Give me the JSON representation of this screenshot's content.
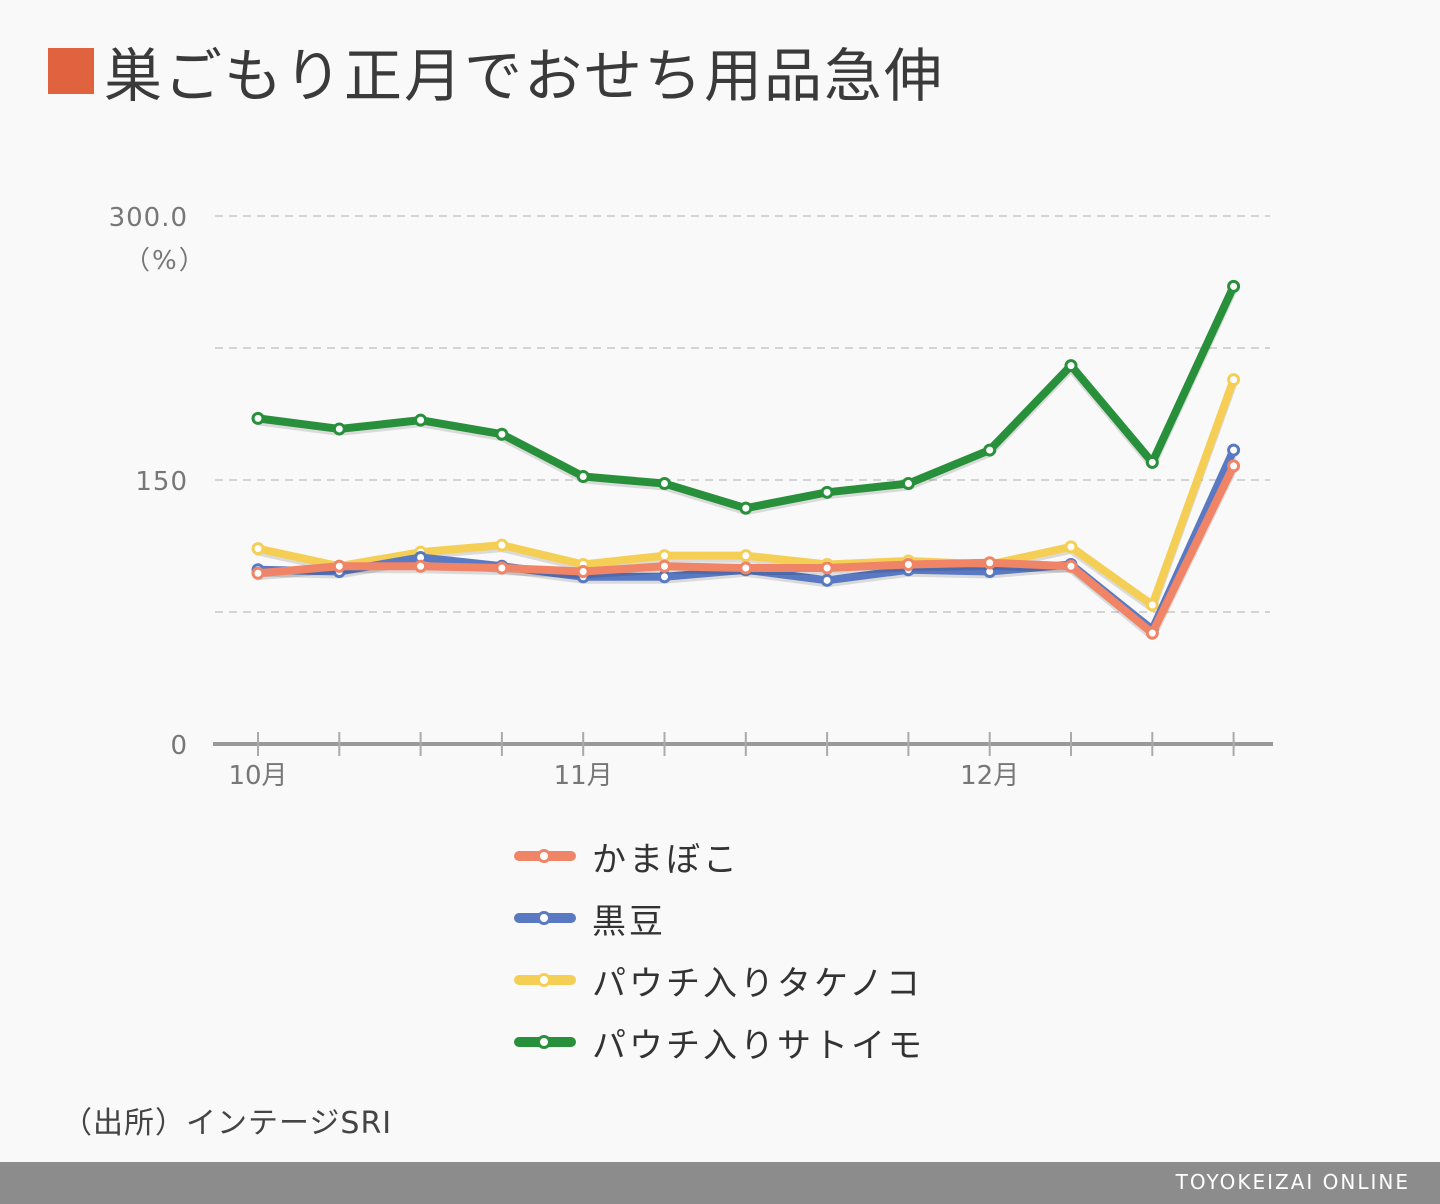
{
  "title": "巣ごもり正月でおせち用品急伸",
  "accent_color": "#e0623e",
  "source": "（出所）インテージSRI",
  "footer_brand": "TOYOKEIZAI ONLINE",
  "chart_data": {
    "type": "line",
    "ylabel": "（%）",
    "ylim": [
      0,
      300
    ],
    "ytick_labels": [
      {
        "value": 300,
        "label": "300.0"
      },
      {
        "value": 150,
        "label": "150"
      },
      {
        "value": 0,
        "label": "0"
      }
    ],
    "gridlines": [
      75,
      150,
      225,
      300
    ],
    "x_points": 13,
    "x_labels": [
      {
        "index": 0,
        "label": "10月"
      },
      {
        "index": 4,
        "label": "11月"
      },
      {
        "index": 9,
        "label": "12月"
      }
    ],
    "grid": true,
    "legend_position": "bottom",
    "series": [
      {
        "name": "パウチ入りサトイモ",
        "color": "#28903b",
        "values": [
          185,
          179,
          184,
          176,
          152,
          148,
          134,
          143,
          148,
          167,
          215,
          160,
          260
        ]
      },
      {
        "name": "パウチ入りタケノコ",
        "color": "#f5cf55",
        "values": [
          111,
          101,
          109,
          113,
          102,
          107,
          107,
          102,
          104,
          102,
          112,
          79,
          207
        ]
      },
      {
        "name": "黒豆",
        "color": "#5a79c3",
        "values": [
          99,
          98,
          106,
          101,
          95,
          95,
          99,
          93,
          99,
          98,
          102,
          65,
          167
        ]
      },
      {
        "name": "かまぼこ",
        "color": "#f08466",
        "values": [
          97,
          101,
          101,
          100,
          98,
          101,
          100,
          100,
          102,
          103,
          101,
          63,
          158
        ]
      }
    ]
  },
  "legend": [
    {
      "label": "かまぼこ",
      "color": "#f08466"
    },
    {
      "label": "黒豆",
      "color": "#5a79c3"
    },
    {
      "label": "パウチ入りタケノコ",
      "color": "#f5cf55"
    },
    {
      "label": "パウチ入りサトイモ",
      "color": "#28903b"
    }
  ]
}
